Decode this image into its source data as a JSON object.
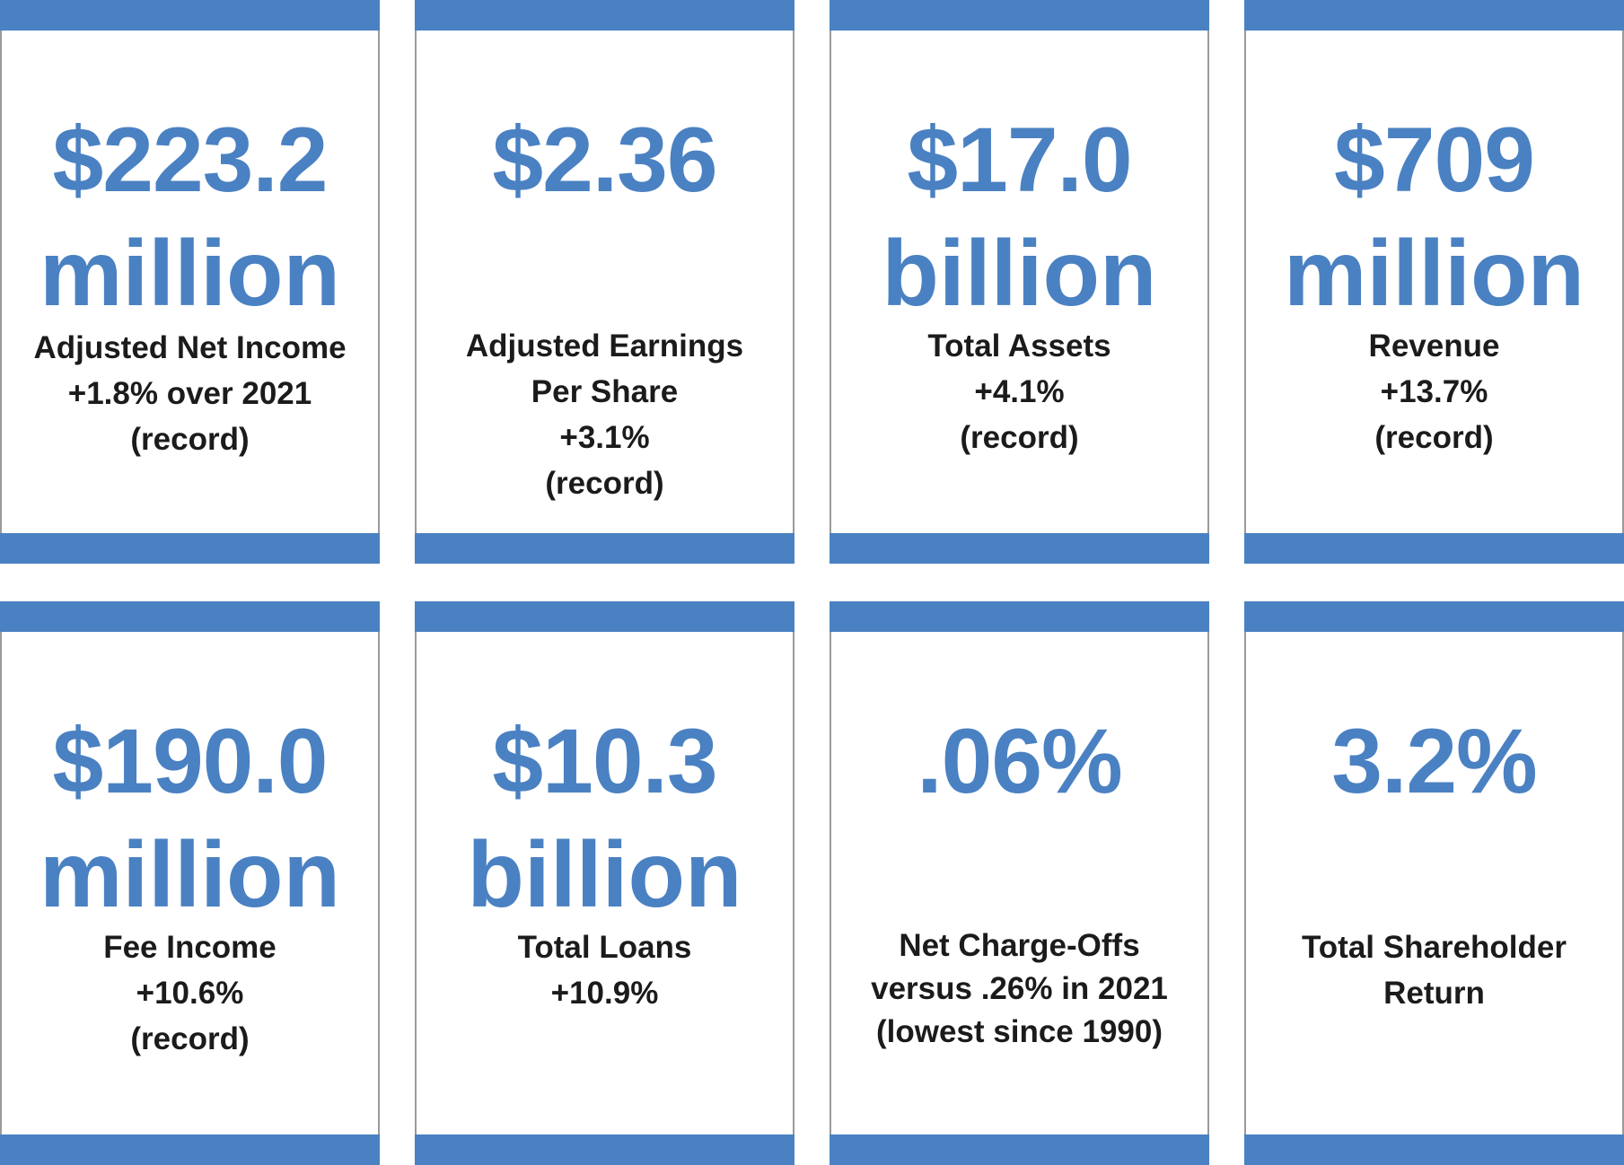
{
  "colors": {
    "accent": "#4a81c2",
    "text": "#1b1b1b",
    "border": "#9a9a9a"
  },
  "cards": [
    {
      "value": "$223.2",
      "unit": "million",
      "lines": [
        "Adjusted Net Income",
        "+1.8% over 2021",
        "(record)"
      ]
    },
    {
      "value": "$2.36",
      "unit": "",
      "lines": [
        "Adjusted Earnings",
        "Per Share",
        "+3.1%",
        "(record)"
      ]
    },
    {
      "value": "$17.0",
      "unit": "billion",
      "lines": [
        "Total Assets",
        "+4.1%",
        "(record)"
      ]
    },
    {
      "value": "$709",
      "unit": "million",
      "lines": [
        "Revenue",
        "+13.7%",
        "(record)"
      ]
    },
    {
      "value": "$190.0",
      "unit": "million",
      "lines": [
        "Fee Income",
        "+10.6%",
        "(record)"
      ]
    },
    {
      "value": "$10.3",
      "unit": "billion",
      "lines": [
        "Total Loans",
        "+10.9%"
      ]
    },
    {
      "value": ".06%",
      "unit": "",
      "lines": [
        "Net Charge-Offs",
        "versus .26% in 2021",
        "(lowest since 1990)"
      ]
    },
    {
      "value": "3.2%",
      "unit": "",
      "lines": [
        "Total Shareholder",
        "Return"
      ]
    }
  ]
}
